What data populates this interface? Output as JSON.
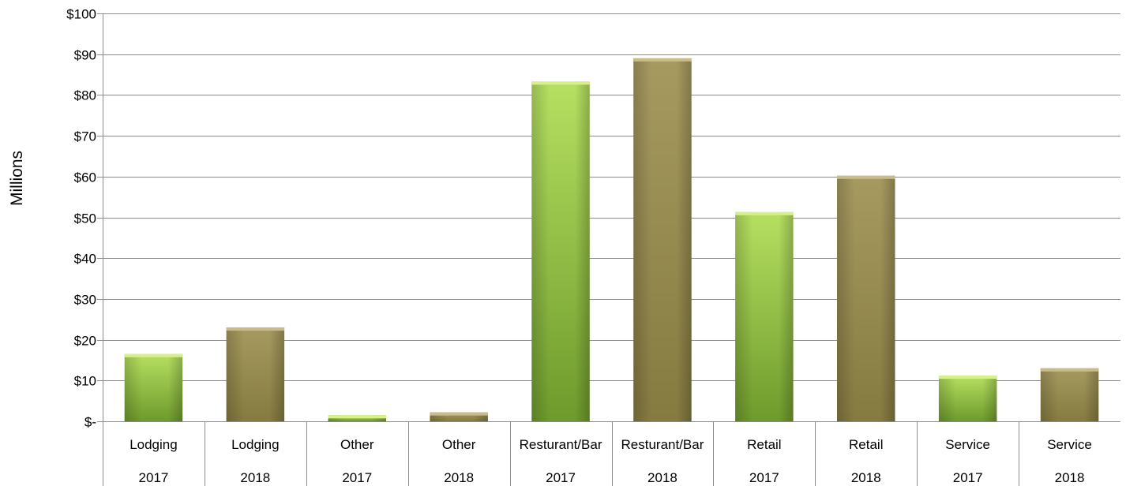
{
  "chart_data": {
    "type": "bar",
    "title": "",
    "xlabel": "",
    "ylabel": "Millions",
    "ylim": [
      0,
      100
    ],
    "yticks": [
      0,
      10,
      20,
      30,
      40,
      50,
      60,
      70,
      80,
      90,
      100
    ],
    "ytick_labels": [
      "$-",
      "$10",
      "$20",
      "$30",
      "$40",
      "$50",
      "$60",
      "$70",
      "$80",
      "$90",
      "$100"
    ],
    "grid": true,
    "legend": "none",
    "categories": [
      {
        "name": "Lodging",
        "year": "2017",
        "value": 16.5,
        "color": "green"
      },
      {
        "name": "Lodging",
        "year": "2018",
        "value": 23,
        "color": "olive"
      },
      {
        "name": "Other",
        "year": "2017",
        "value": 1.5,
        "color": "green"
      },
      {
        "name": "Other",
        "year": "2018",
        "value": 2.2,
        "color": "olive"
      },
      {
        "name": "Resturant/Bar",
        "year": "2017",
        "value": 83.3,
        "color": "green"
      },
      {
        "name": "Resturant/Bar",
        "year": "2018",
        "value": 89,
        "color": "olive"
      },
      {
        "name": "Retail",
        "year": "2017",
        "value": 51.3,
        "color": "green"
      },
      {
        "name": "Retail",
        "year": "2018",
        "value": 60.2,
        "color": "olive"
      },
      {
        "name": "Service",
        "year": "2017",
        "value": 11.2,
        "color": "green"
      },
      {
        "name": "Service",
        "year": "2018",
        "value": 13,
        "color": "olive"
      }
    ],
    "colors": {
      "green_top": "#b5e061",
      "green_bottom": "#6e9a2c",
      "olive_top": "#a69a60",
      "olive_bottom": "#857a40",
      "grid": "#8c8c8c",
      "axis": "#8c8c8c"
    }
  }
}
